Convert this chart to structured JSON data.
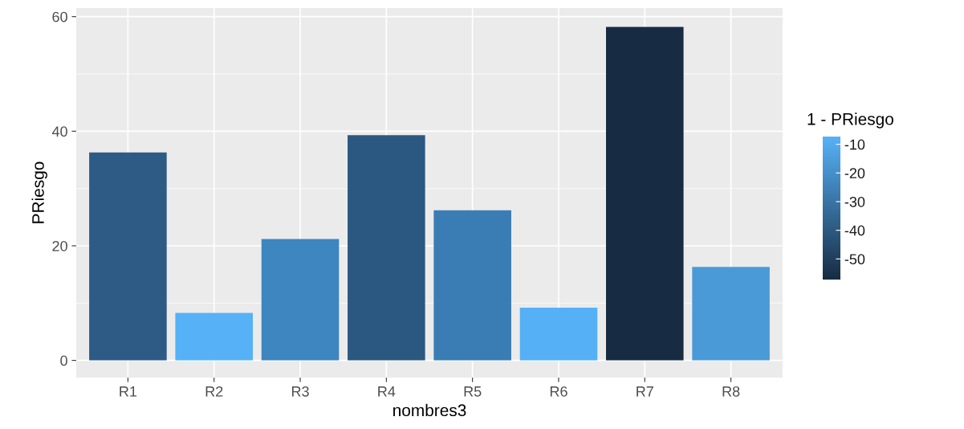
{
  "chart_data": {
    "type": "bar",
    "xlabel": "nombres3",
    "ylabel": "PRiesgo",
    "clabel": "1 - PRiesgo",
    "categories": [
      "R1",
      "R2",
      "R3",
      "R4",
      "R5",
      "R6",
      "R7",
      "R8"
    ],
    "values": [
      36.3,
      8.3,
      21.2,
      39.3,
      26.2,
      9.2,
      58.2,
      16.3
    ],
    "colors": [
      "#2d5b86",
      "#56b1f7",
      "#3e86c0",
      "#2b5880",
      "#3a7db4",
      "#55b0f5",
      "#172b43",
      "#4a9ad8"
    ],
    "ylim": [
      -3,
      61.5
    ],
    "yticks": [
      0,
      20,
      40,
      60
    ],
    "grid": true,
    "clim": [
      -57.2,
      -7.3
    ],
    "cticks": [
      -50,
      -40,
      -30,
      -20,
      -10
    ]
  }
}
